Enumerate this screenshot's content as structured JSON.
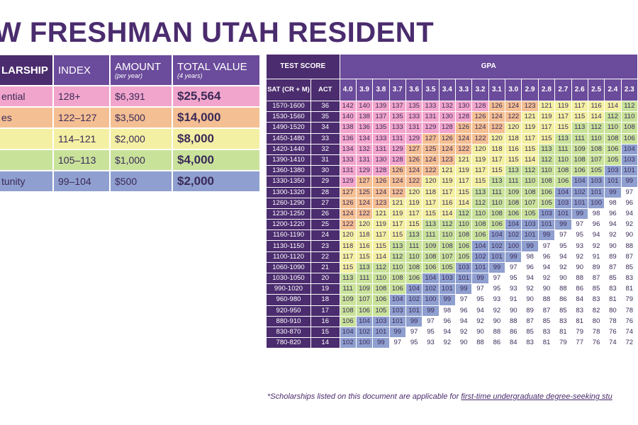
{
  "title": "W FRESHMAN UTAH RESIDENT",
  "scholarship_table": {
    "headers": {
      "name": "LARSHIP",
      "index": "INDEX",
      "amount": "AMOUNT",
      "amount_sub": "(per year)",
      "total": "TOTAL VALUE",
      "total_sub": "(4 years)"
    },
    "rows": [
      {
        "name": "ential",
        "index": "128+",
        "amount": "$6,391",
        "total": "$25,564",
        "color": "#f2a5cc"
      },
      {
        "name": "es",
        "index": "122–127",
        "amount": "$3,500",
        "total": "$14,000",
        "color": "#f4bf93"
      },
      {
        "name": "",
        "index": "114–121",
        "amount": "$2,000",
        "total": "$8,000",
        "color": "#f4f0a3"
      },
      {
        "name": "",
        "index": "105–113",
        "amount": "$1,000",
        "total": "$4,000",
        "color": "#c9e29a"
      },
      {
        "name": "tunity",
        "index": "99–104",
        "amount": "$500",
        "total": "$2,000",
        "color": "#8f9fcf"
      }
    ]
  },
  "grid": {
    "test_score_label": "TEST SCORE",
    "gpa_label": "GPA",
    "sat_label": "SAT (CR + M)",
    "act_label": "ACT",
    "gpas": [
      "4.0",
      "3.9",
      "3.8",
      "3.7",
      "3.6",
      "3.5",
      "3.4",
      "3.3",
      "3.2",
      "3.1",
      "3.0",
      "2.9",
      "2.8",
      "2.7",
      "2.6",
      "2.5",
      "2.4",
      "2.3"
    ],
    "rows": [
      {
        "sat": "1570-1600",
        "act": "36",
        "values": [
          "142",
          "140",
          "139",
          "137",
          "135",
          "133",
          "132",
          "130",
          "128",
          "126",
          "124",
          "123",
          "121",
          "119",
          "117",
          "116",
          "114",
          "112"
        ]
      },
      {
        "sat": "1530-1560",
        "act": "35",
        "values": [
          "140",
          "138",
          "137",
          "135",
          "133",
          "131",
          "130",
          "128",
          "126",
          "124",
          "122",
          "121",
          "119",
          "117",
          "115",
          "114",
          "112",
          "110"
        ]
      },
      {
        "sat": "1490-1520",
        "act": "34",
        "values": [
          "138",
          "136",
          "135",
          "133",
          "131",
          "129",
          "128",
          "126",
          "124",
          "122",
          "120",
          "119",
          "117",
          "115",
          "113",
          "112",
          "110",
          "108"
        ]
      },
      {
        "sat": "1450-1480",
        "act": "33",
        "values": [
          "136",
          "134",
          "133",
          "131",
          "129",
          "127",
          "126",
          "124",
          "122",
          "120",
          "118",
          "117",
          "115",
          "113",
          "111",
          "110",
          "108",
          "106"
        ]
      },
      {
        "sat": "1420-1440",
        "act": "32",
        "values": [
          "134",
          "132",
          "131",
          "129",
          "127",
          "125",
          "124",
          "122",
          "120",
          "118",
          "116",
          "115",
          "113",
          "111",
          "109",
          "108",
          "106",
          "104"
        ]
      },
      {
        "sat": "1390-1410",
        "act": "31",
        "values": [
          "133",
          "131",
          "130",
          "128",
          "126",
          "124",
          "123",
          "121",
          "119",
          "117",
          "115",
          "114",
          "112",
          "110",
          "108",
          "107",
          "105",
          "103"
        ]
      },
      {
        "sat": "1360-1380",
        "act": "30",
        "values": [
          "131",
          "129",
          "128",
          "126",
          "124",
          "122",
          "121",
          "119",
          "117",
          "115",
          "113",
          "112",
          "110",
          "108",
          "106",
          "105",
          "103",
          "101"
        ]
      },
      {
        "sat": "1330-1350",
        "act": "29",
        "values": [
          "129",
          "127",
          "126",
          "124",
          "122",
          "120",
          "119",
          "117",
          "115",
          "113",
          "111",
          "110",
          "108",
          "106",
          "104",
          "103",
          "101",
          "99"
        ]
      },
      {
        "sat": "1300-1320",
        "act": "28",
        "values": [
          "127",
          "125",
          "124",
          "122",
          "120",
          "118",
          "117",
          "115",
          "113",
          "111",
          "109",
          "108",
          "106",
          "104",
          "102",
          "101",
          "99",
          "97"
        ]
      },
      {
        "sat": "1260-1290",
        "act": "27",
        "values": [
          "126",
          "124",
          "123",
          "121",
          "119",
          "117",
          "116",
          "114",
          "112",
          "110",
          "108",
          "107",
          "105",
          "103",
          "101",
          "100",
          "98",
          "96"
        ]
      },
      {
        "sat": "1230-1250",
        "act": "26",
        "values": [
          "124",
          "122",
          "121",
          "119",
          "117",
          "115",
          "114",
          "112",
          "110",
          "108",
          "106",
          "105",
          "103",
          "101",
          "99",
          "98",
          "96",
          "94"
        ]
      },
      {
        "sat": "1200-1220",
        "act": "25",
        "values": [
          "122",
          "120",
          "119",
          "117",
          "115",
          "113",
          "112",
          "110",
          "108",
          "106",
          "104",
          "103",
          "101",
          "99",
          "97",
          "96",
          "94",
          "92"
        ]
      },
      {
        "sat": "1160-1190",
        "act": "24",
        "values": [
          "120",
          "118",
          "117",
          "115",
          "113",
          "111",
          "110",
          "108",
          "106",
          "104",
          "102",
          "101",
          "99",
          "97",
          "95",
          "94",
          "92",
          "90"
        ]
      },
      {
        "sat": "1130-1150",
        "act": "23",
        "values": [
          "118",
          "116",
          "115",
          "113",
          "111",
          "109",
          "108",
          "106",
          "104",
          "102",
          "100",
          "99",
          "97",
          "95",
          "93",
          "92",
          "90",
          "88"
        ]
      },
      {
        "sat": "1100-1120",
        "act": "22",
        "values": [
          "117",
          "115",
          "114",
          "112",
          "110",
          "108",
          "107",
          "105",
          "102",
          "101",
          "99",
          "98",
          "96",
          "94",
          "92",
          "91",
          "89",
          "87"
        ]
      },
      {
        "sat": "1060-1090",
        "act": "21",
        "values": [
          "115",
          "113",
          "112",
          "110",
          "108",
          "106",
          "105",
          "103",
          "101",
          "99",
          "97",
          "96",
          "94",
          "92",
          "90",
          "89",
          "87",
          "85"
        ]
      },
      {
        "sat": "1030-1050",
        "act": "20",
        "values": [
          "113",
          "111",
          "110",
          "108",
          "106",
          "104",
          "103",
          "101",
          "99",
          "97",
          "95",
          "94",
          "92",
          "90",
          "88",
          "87",
          "85",
          "83"
        ]
      },
      {
        "sat": "990-1020",
        "act": "19",
        "values": [
          "111",
          "109",
          "108",
          "106",
          "104",
          "102",
          "101",
          "99",
          "97",
          "95",
          "93",
          "92",
          "90",
          "88",
          "86",
          "85",
          "83",
          "81"
        ]
      },
      {
        "sat": "960-980",
        "act": "18",
        "values": [
          "109",
          "107",
          "106",
          "104",
          "102",
          "100",
          "99",
          "97",
          "95",
          "93",
          "91",
          "90",
          "88",
          "86",
          "84",
          "83",
          "81",
          "79"
        ]
      },
      {
        "sat": "920-950",
        "act": "17",
        "values": [
          "108",
          "106",
          "105",
          "103",
          "101",
          "99",
          "98",
          "96",
          "94",
          "92",
          "90",
          "89",
          "87",
          "85",
          "83",
          "82",
          "80",
          "78"
        ]
      },
      {
        "sat": "880-910",
        "act": "16",
        "values": [
          "106",
          "104",
          "103",
          "101",
          "99",
          "97",
          "96",
          "94",
          "92",
          "90",
          "88",
          "87",
          "85",
          "83",
          "81",
          "80",
          "78",
          "76"
        ]
      },
      {
        "sat": "830-870",
        "act": "15",
        "values": [
          "104",
          "102",
          "101",
          "99",
          "97",
          "95",
          "94",
          "92",
          "90",
          "88",
          "86",
          "85",
          "83",
          "81",
          "79",
          "78",
          "76",
          "74"
        ]
      },
      {
        "sat": "780-820",
        "act": "14",
        "values": [
          "102",
          "100",
          "99",
          "97",
          "95",
          "93",
          "92",
          "90",
          "88",
          "86",
          "84",
          "83",
          "81",
          "79",
          "77",
          "76",
          "74",
          "72"
        ]
      }
    ]
  },
  "footnote": {
    "prefix": "*Scholarships listed on this document are applicable for ",
    "link": "first-time undergraduate degree-seeking stu"
  }
}
